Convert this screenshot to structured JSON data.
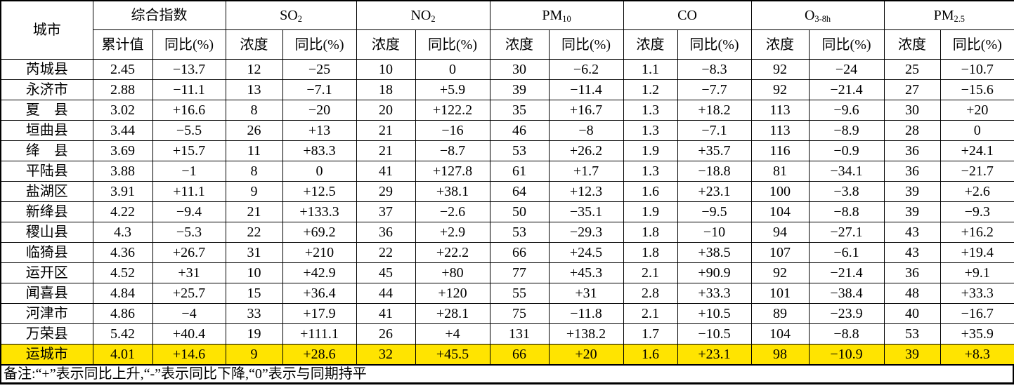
{
  "table": {
    "city_header": "城市",
    "groups": [
      {
        "base": "综合指数",
        "sub": "",
        "cols": [
          "累计值",
          "同比(%)"
        ]
      },
      {
        "base": "SO",
        "sub": "2",
        "cols": [
          "浓度",
          "同比(%)"
        ]
      },
      {
        "base": "NO",
        "sub": "2",
        "cols": [
          "浓度",
          "同比(%)"
        ]
      },
      {
        "base": "PM",
        "sub": "10",
        "cols": [
          "浓度",
          "同比(%)"
        ]
      },
      {
        "base": "CO",
        "sub": "",
        "cols": [
          "浓度",
          "同比(%)"
        ]
      },
      {
        "base": "O",
        "sub": "3-8h",
        "cols": [
          "浓度",
          "同比(%)"
        ]
      },
      {
        "base": "PM",
        "sub": "2.5",
        "cols": [
          "浓度",
          "同比(%)"
        ]
      }
    ],
    "rows": [
      {
        "city": "芮城县",
        "highlight": false,
        "cells": [
          "2.45",
          "−13.7",
          "12",
          "−25",
          "10",
          "0",
          "30",
          "−6.2",
          "1.1",
          "−8.3",
          "92",
          "−24",
          "25",
          "−10.7"
        ]
      },
      {
        "city": "永济市",
        "highlight": false,
        "cells": [
          "2.88",
          "−11.1",
          "13",
          "−7.1",
          "18",
          "+5.9",
          "39",
          "−11.4",
          "1.2",
          "−7.7",
          "92",
          "−21.4",
          "27",
          "−15.6"
        ]
      },
      {
        "city": "夏　县",
        "highlight": false,
        "cells": [
          "3.02",
          "+16.6",
          "8",
          "−20",
          "20",
          "+122.2",
          "35",
          "+16.7",
          "1.3",
          "+18.2",
          "113",
          "−9.6",
          "30",
          "+20"
        ]
      },
      {
        "city": "垣曲县",
        "highlight": false,
        "cells": [
          "3.44",
          "−5.5",
          "26",
          "+13",
          "21",
          "−16",
          "46",
          "−8",
          "1.3",
          "−7.1",
          "113",
          "−8.9",
          "28",
          "0"
        ]
      },
      {
        "city": "绛　县",
        "highlight": false,
        "cells": [
          "3.69",
          "+15.7",
          "11",
          "+83.3",
          "21",
          "−8.7",
          "53",
          "+26.2",
          "1.9",
          "+35.7",
          "116",
          "−0.9",
          "36",
          "+24.1"
        ]
      },
      {
        "city": "平陆县",
        "highlight": false,
        "cells": [
          "3.88",
          "−1",
          "8",
          "0",
          "41",
          "+127.8",
          "61",
          "+1.7",
          "1.3",
          "−18.8",
          "81",
          "−34.1",
          "36",
          "−21.7"
        ]
      },
      {
        "city": "盐湖区",
        "highlight": false,
        "cells": [
          "3.91",
          "+11.1",
          "9",
          "+12.5",
          "29",
          "+38.1",
          "64",
          "+12.3",
          "1.6",
          "+23.1",
          "100",
          "−3.8",
          "39",
          "+2.6"
        ]
      },
      {
        "city": "新绛县",
        "highlight": false,
        "cells": [
          "4.22",
          "−9.4",
          "21",
          "+133.3",
          "37",
          "−2.6",
          "50",
          "−35.1",
          "1.9",
          "−9.5",
          "104",
          "−8.8",
          "39",
          "−9.3"
        ]
      },
      {
        "city": "稷山县",
        "highlight": false,
        "cells": [
          "4.3",
          "−5.3",
          "22",
          "+69.2",
          "36",
          "+2.9",
          "53",
          "−29.3",
          "1.8",
          "−10",
          "94",
          "−27.1",
          "43",
          "+16.2"
        ]
      },
      {
        "city": "临猗县",
        "highlight": false,
        "cells": [
          "4.36",
          "+26.7",
          "31",
          "+210",
          "22",
          "+22.2",
          "66",
          "+24.5",
          "1.8",
          "+38.5",
          "107",
          "−6.1",
          "43",
          "+19.4"
        ]
      },
      {
        "city": "运开区",
        "highlight": false,
        "cells": [
          "4.52",
          "+31",
          "10",
          "+42.9",
          "45",
          "+80",
          "77",
          "+45.3",
          "2.1",
          "+90.9",
          "92",
          "−21.4",
          "36",
          "+9.1"
        ]
      },
      {
        "city": "闻喜县",
        "highlight": false,
        "cells": [
          "4.84",
          "+25.7",
          "15",
          "+36.4",
          "44",
          "+120",
          "55",
          "+31",
          "2.8",
          "+33.3",
          "101",
          "−38.4",
          "48",
          "+33.3"
        ]
      },
      {
        "city": "河津市",
        "highlight": false,
        "cells": [
          "4.86",
          "−4",
          "33",
          "+17.9",
          "41",
          "+28.1",
          "75",
          "−11.8",
          "2.1",
          "+10.5",
          "89",
          "−23.9",
          "40",
          "−16.7"
        ]
      },
      {
        "city": "万荣县",
        "highlight": false,
        "cells": [
          "5.42",
          "+40.4",
          "19",
          "+111.1",
          "26",
          "+4",
          "131",
          "+138.2",
          "1.7",
          "−10.5",
          "104",
          "−8.8",
          "53",
          "+35.9"
        ]
      },
      {
        "city": "运城市",
        "highlight": true,
        "cells": [
          "4.01",
          "+14.6",
          "9",
          "+28.6",
          "32",
          "+45.5",
          "66",
          "+20",
          "1.6",
          "+23.1",
          "98",
          "−10.9",
          "39",
          "+8.3"
        ]
      }
    ],
    "highlight_color": "#ffe400",
    "note": "备注:“+”表示同比上升,“-”表示同比下降,“0”表示与同期持平"
  }
}
